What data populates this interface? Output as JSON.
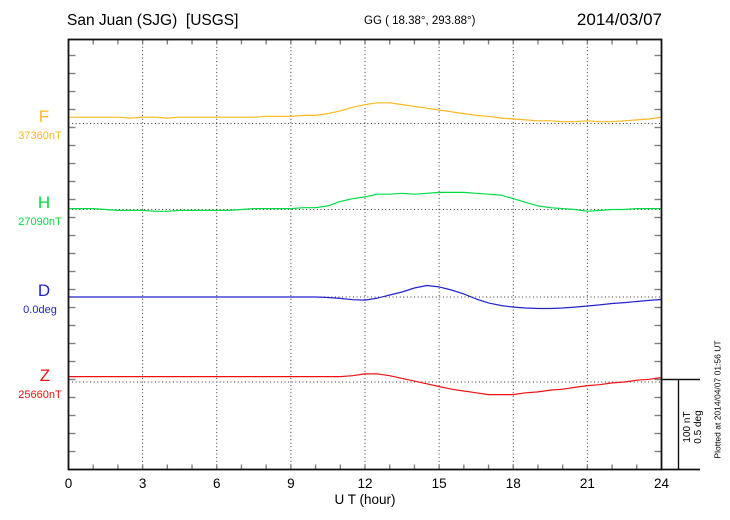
{
  "header": {
    "title": "San Juan (SJG)  [USGS]",
    "coordinates": "GG ( 18.38°, 293.88°)",
    "date": "2014/03/07"
  },
  "annotations": {
    "plotted_at": "Plotted at 2014/04/07 01:56 UT"
  },
  "chart_data": {
    "type": "line",
    "title": "San Juan (SJG) [USGS] magnetogram for 2014/03/07",
    "xlabel": "U T (hour)",
    "x_ticks": [
      0,
      3,
      6,
      9,
      12,
      15,
      18,
      21,
      24
    ],
    "x_range_hours": [
      0,
      24
    ],
    "sample_step_hours": 0.5,
    "grid": "dotted vertical lines every 3 h, dotted horizontal line at each series baseline",
    "scale_bar": {
      "nT_label": "100 nT",
      "deg_label": "0.5 deg",
      "nT_per_bar": 100,
      "deg_per_bar": 0.5
    },
    "series": [
      {
        "name": "F",
        "baseline_label": "37360nT",
        "baseline_value": 37360,
        "unit": "nT",
        "color": "#FFB81C",
        "offsets": [
          7,
          7,
          7,
          7,
          7,
          6,
          7,
          7,
          6,
          7,
          7,
          7,
          7,
          7,
          7,
          7,
          8,
          8,
          8,
          9,
          9,
          11,
          14,
          18,
          21,
          23,
          23,
          21,
          19,
          17,
          15,
          13,
          11,
          9,
          8,
          6,
          5,
          4,
          3,
          3,
          2,
          2,
          3,
          2,
          2,
          3,
          4,
          5,
          7
        ]
      },
      {
        "name": "H",
        "baseline_label": "27090nT",
        "baseline_value": 27090,
        "unit": "nT",
        "color": "#00DD44",
        "offsets": [
          1,
          1,
          1,
          0,
          -1,
          -1,
          -1,
          -2,
          -2,
          -1,
          -1,
          -1,
          -1,
          -1,
          0,
          1,
          1,
          1,
          1,
          2,
          2,
          4,
          9,
          12,
          14,
          17,
          17,
          18,
          17,
          18,
          19,
          19,
          19,
          18,
          17,
          16,
          12,
          8,
          4,
          2,
          1,
          0,
          -2,
          -1,
          0,
          0,
          1,
          1,
          1
        ]
      },
      {
        "name": "D",
        "baseline_label": "0.0deg",
        "baseline_value": 0.0,
        "unit": "deg",
        "color": "#2323CC",
        "offsets": [
          0,
          0,
          0,
          0,
          0,
          0,
          0,
          0,
          0,
          0,
          0,
          0,
          0,
          0,
          0,
          0,
          0,
          0,
          0,
          0,
          0,
          -0.003,
          -0.008,
          -0.015,
          -0.017,
          -0.006,
          0.011,
          0.028,
          0.05,
          0.064,
          0.056,
          0.039,
          0.017,
          -0.011,
          -0.033,
          -0.047,
          -0.056,
          -0.061,
          -0.064,
          -0.064,
          -0.061,
          -0.056,
          -0.05,
          -0.044,
          -0.036,
          -0.031,
          -0.025,
          -0.019,
          -0.014
        ]
      },
      {
        "name": "Z",
        "baseline_label": "25660nT",
        "baseline_value": 25660,
        "unit": "nT",
        "color": "#EE1111",
        "offsets": [
          6,
          6,
          6,
          6,
          6,
          6,
          6,
          6,
          6,
          6,
          6,
          6,
          6,
          6,
          6,
          6,
          6,
          6,
          6,
          6,
          6,
          6,
          6,
          7,
          9,
          9,
          7,
          4,
          1,
          -2,
          -5,
          -8,
          -10,
          -12,
          -14,
          -14,
          -14,
          -12,
          -11,
          -9,
          -8,
          -6,
          -4,
          -3,
          -1,
          0,
          2,
          3,
          5
        ]
      }
    ]
  }
}
